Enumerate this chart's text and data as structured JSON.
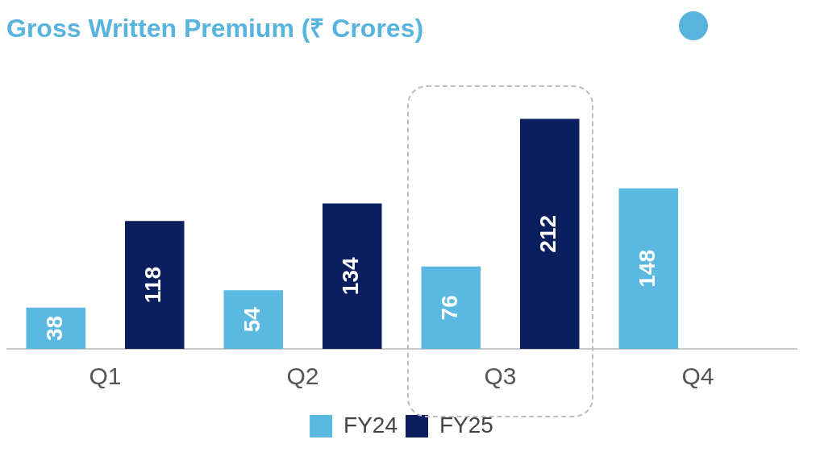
{
  "chart_data": {
    "type": "bar",
    "title": "Gross Written Premium (₹ Crores)",
    "categories": [
      "Q1",
      "Q2",
      "Q3",
      "Q4"
    ],
    "series": [
      {
        "name": "FY24",
        "color": "#5bb8e0",
        "values": [
          38,
          54,
          76,
          148
        ]
      },
      {
        "name": "FY25",
        "color": "#0b1f5e",
        "values": [
          118,
          134,
          212,
          null
        ]
      }
    ],
    "data_labels": true,
    "grid": false,
    "legend": "bottom"
  }
}
